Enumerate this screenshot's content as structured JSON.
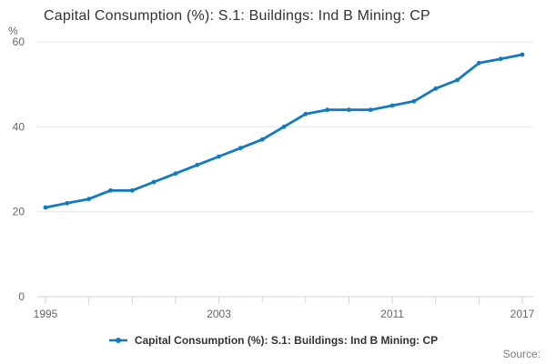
{
  "title": "Capital Consumption (%): S.1: Buildings: Ind B Mining: CP",
  "source_label": "Source:",
  "chart_data": {
    "type": "line",
    "title": "Capital Consumption (%): S.1: Buildings: Ind B Mining: CP",
    "ylabel": "%",
    "xlabel": "",
    "x": [
      1995,
      1996,
      1997,
      1998,
      1999,
      2000,
      2001,
      2002,
      2003,
      2004,
      2005,
      2006,
      2007,
      2008,
      2009,
      2010,
      2011,
      2012,
      2013,
      2014,
      2015,
      2016,
      2017
    ],
    "series": [
      {
        "name": "Capital Consumption (%): S.1: Buildings: Ind B Mining: CP",
        "values": [
          21,
          22,
          23,
          25,
          25,
          27,
          29,
          31,
          33,
          35,
          37,
          40,
          43,
          44,
          44,
          44,
          45,
          46,
          49,
          51,
          55,
          56,
          57
        ]
      }
    ],
    "ylim": [
      0,
      60
    ],
    "yticks": [
      0,
      20,
      40,
      60
    ],
    "xtick_step_years": 2,
    "xtick_labels": [
      "1995",
      "2003",
      "2011",
      "2017"
    ],
    "grid": "horizontal",
    "legend_position": "bottom",
    "colors": {
      "line": "#1379c0",
      "grid": "#e6e6e6",
      "axis": "#ccd6eb",
      "tick_labels": "#666666",
      "title": "#333333",
      "legend_text": "#333333",
      "source_text": "#7d7d7d",
      "background": "#ffffff"
    }
  }
}
